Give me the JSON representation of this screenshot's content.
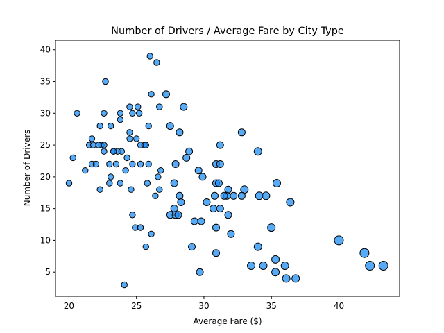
{
  "chart_data": {
    "type": "scatter",
    "title": "Number of Drivers / Average Fare by City Type",
    "xlabel": "Average Fare ($)",
    "ylabel": "Number of Drivers",
    "xlim": [
      19,
      44.5
    ],
    "ylim": [
      1.2,
      41.5
    ],
    "x_ticks": [
      20,
      25,
      30,
      35,
      40
    ],
    "y_ticks": [
      5,
      10,
      15,
      20,
      25,
      30,
      35,
      40
    ],
    "grid": false,
    "legend": "none",
    "marker_color": "#1f8ef1",
    "marker_edge_color": "#000000",
    "series": [
      {
        "x": [
          26.0,
          26.5,
          22.7,
          20.6,
          22.6,
          23.8,
          24.5,
          25.1,
          26.7,
          28.5,
          23.8,
          24.7,
          25.2,
          26.1,
          27.2,
          22.3,
          23.1,
          25.9,
          27.5,
          21.7,
          24.5,
          25.0,
          21.5,
          21.8,
          22.4,
          22.6,
          22.2,
          23.3,
          23.6,
          23.9,
          24.5,
          25.3,
          25.6,
          25.7,
          28.2,
          31.2,
          32.8,
          28.9,
          20.3,
          22.6,
          23.3,
          24.3,
          28.7,
          21.2,
          23.0,
          23.5,
          24.2,
          24.7,
          25.3,
          25.9,
          26.8,
          29.6,
          21.7,
          22.0,
          27.9,
          30.9,
          31.2,
          34.0,
          20.0,
          23.1,
          23.0,
          23.8,
          25.8,
          26.6,
          27.8,
          29.9,
          30.9,
          31.1,
          35.4,
          22.3,
          24.6,
          26.7,
          31.8,
          33.0,
          30.2,
          28.2,
          31.7,
          34.1,
          34.6,
          36.4,
          26.4,
          28.3,
          30.8,
          32.2,
          32.8,
          31.5,
          24.7,
          27.5,
          27.8,
          27.9,
          28.1,
          30.7,
          31.2,
          31.8,
          24.9,
          25.3,
          29.3,
          29.8,
          30.9,
          35.0,
          26.1,
          32.0,
          25.7,
          29.1,
          34.0,
          40.0,
          30.9,
          41.9,
          35.3,
          33.5,
          34.4,
          42.3,
          43.3,
          36.0,
          29.7,
          35.3,
          36.1,
          36.8,
          24.1
        ],
        "y": [
          39,
          38,
          35,
          30,
          30,
          30,
          31,
          31,
          31,
          31,
          29,
          30,
          30,
          33,
          33,
          28,
          28,
          28,
          28,
          26,
          27,
          26,
          25,
          25,
          25,
          25,
          25,
          24,
          24,
          24,
          26,
          25,
          25,
          25,
          27,
          25,
          27,
          24,
          23,
          24,
          24,
          23,
          23,
          21,
          22,
          22,
          21,
          22,
          22,
          22,
          21,
          21,
          22,
          22,
          22,
          22,
          22,
          24,
          19,
          20,
          19,
          19,
          19,
          20,
          19,
          20,
          19,
          19,
          19,
          18,
          18,
          18,
          18,
          18,
          16,
          17,
          17,
          17,
          17,
          16,
          17,
          16,
          17,
          17,
          17,
          17,
          14,
          14,
          15,
          14,
          14,
          15,
          15,
          14,
          12,
          12,
          13,
          13,
          12,
          12,
          11,
          11,
          9,
          9,
          9,
          10,
          8,
          8,
          7,
          6,
          6,
          6,
          6,
          6,
          5,
          5,
          4,
          4,
          3
        ]
      }
    ]
  }
}
